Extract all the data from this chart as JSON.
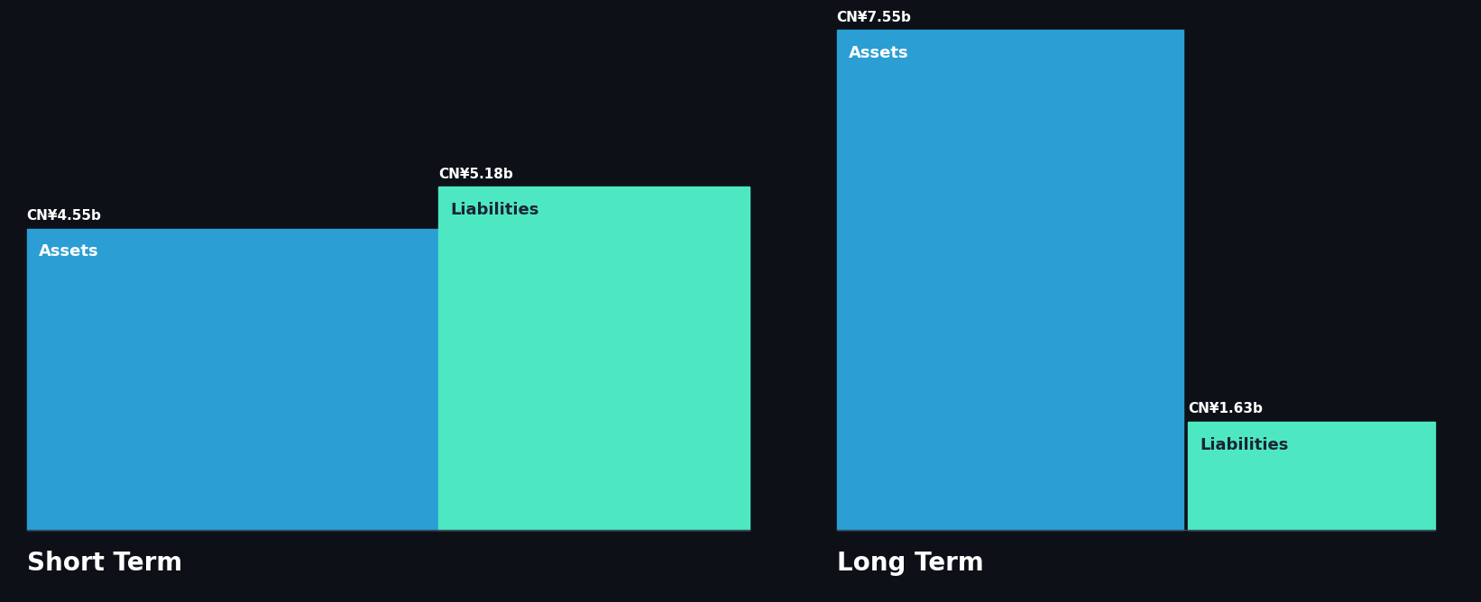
{
  "background_color": "#0d1117",
  "bar_color_assets": "#2B9ED4",
  "bar_color_liabilities": "#4DE8C2",
  "text_color_white": "#ffffff",
  "text_color_dark": "#1a2535",
  "short_term_assets": 4.55,
  "short_term_liabilities": 5.18,
  "long_term_assets": 7.55,
  "long_term_liabilities": 1.63,
  "short_term_label": "Short Term",
  "long_term_label": "Long Term",
  "assets_label": "Assets",
  "liabilities_label": "Liabilities",
  "st_assets_value": "CN¥4.55b",
  "st_liab_value": "CN¥5.18b",
  "lt_assets_value": "CN¥7.55b",
  "lt_liab_value": "CN¥1.63b",
  "figsize": [
    16.42,
    6.68
  ],
  "dpi": 100,
  "value_fontsize": 11,
  "label_fontsize": 13,
  "section_fontsize": 20
}
